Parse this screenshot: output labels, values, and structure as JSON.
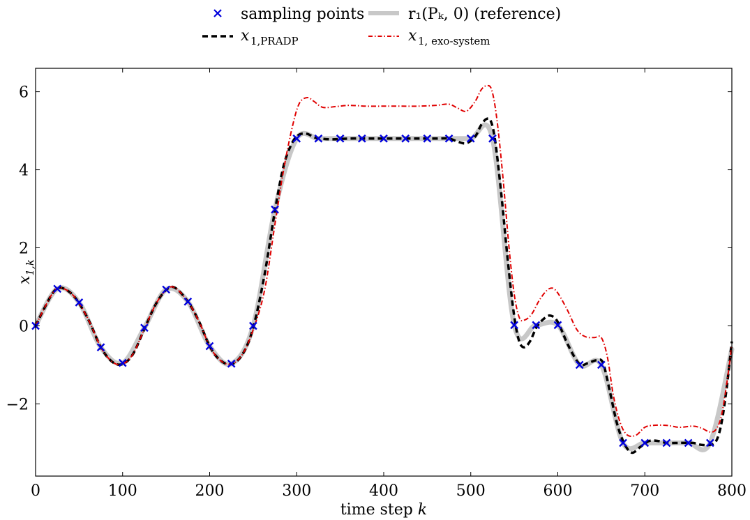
{
  "chart_data": {
    "type": "line",
    "xlabel": "time step k",
    "ylabel": "x1,k",
    "xlim": [
      0,
      800
    ],
    "ylim": [
      -3.85,
      6.6
    ],
    "xticks": [
      0,
      100,
      200,
      300,
      400,
      500,
      600,
      700,
      800
    ],
    "yticks": [
      -2,
      0,
      2,
      4,
      6
    ],
    "xtick_labels": [
      "0",
      "100",
      "200",
      "300",
      "400",
      "500",
      "600",
      "700",
      "800"
    ],
    "ytick_labels": [
      "−2",
      "0",
      "2",
      "4",
      "6"
    ],
    "grid": false,
    "legend_position": "top-center",
    "legend": {
      "sampling": "sampling points",
      "reference": "r₁(Pₖ, 0) (reference)",
      "pradp_main": "x",
      "pradp_sub": "1,PRADP",
      "exo_main": "x",
      "exo_sub": "1, exo-system"
    },
    "series": [
      {
        "name": "r₁(Pₖ, 0) (reference)",
        "style": "solid-thick",
        "color": "#c8c8c8",
        "points": [
          [
            0,
            0
          ],
          [
            25,
            0.95
          ],
          [
            50,
            0.6
          ],
          [
            75,
            -0.55
          ],
          [
            100,
            -0.95
          ],
          [
            125,
            -0.05
          ],
          [
            150,
            0.93
          ],
          [
            175,
            0.62
          ],
          [
            200,
            -0.52
          ],
          [
            225,
            -0.97
          ],
          [
            250,
            0.0
          ],
          [
            275,
            2.98
          ],
          [
            300,
            4.8
          ],
          [
            325,
            4.8
          ],
          [
            350,
            4.8
          ],
          [
            375,
            4.8
          ],
          [
            400,
            4.8
          ],
          [
            425,
            4.8
          ],
          [
            450,
            4.8
          ],
          [
            475,
            4.8
          ],
          [
            500,
            4.8
          ],
          [
            525,
            4.8
          ],
          [
            550,
            0.02
          ],
          [
            575,
            0.02
          ],
          [
            600,
            0.02
          ],
          [
            625,
            -1.0
          ],
          [
            650,
            -1.0
          ],
          [
            675,
            -3.0
          ],
          [
            700,
            -3.0
          ],
          [
            725,
            -3.0
          ],
          [
            750,
            -3.0
          ],
          [
            775,
            -3.0
          ],
          [
            800,
            -0.6
          ]
        ]
      },
      {
        "name": "x1,PRADP",
        "style": "dashed",
        "color": "#000000",
        "points": [
          [
            0,
            0
          ],
          [
            10,
            0.45
          ],
          [
            20,
            0.85
          ],
          [
            28,
            0.98
          ],
          [
            40,
            0.85
          ],
          [
            50,
            0.58
          ],
          [
            62,
            0.1
          ],
          [
            75,
            -0.55
          ],
          [
            88,
            -0.92
          ],
          [
            100,
            -0.98
          ],
          [
            112,
            -0.72
          ],
          [
            125,
            -0.08
          ],
          [
            138,
            0.55
          ],
          [
            150,
            0.92
          ],
          [
            160,
            0.98
          ],
          [
            175,
            0.62
          ],
          [
            188,
            0.1
          ],
          [
            200,
            -0.52
          ],
          [
            212,
            -0.88
          ],
          [
            225,
            -0.98
          ],
          [
            238,
            -0.72
          ],
          [
            250,
            -0.05
          ],
          [
            263,
            1.3
          ],
          [
            275,
            2.95
          ],
          [
            285,
            4.1
          ],
          [
            295,
            4.7
          ],
          [
            303,
            4.9
          ],
          [
            312,
            4.92
          ],
          [
            322,
            4.82
          ],
          [
            340,
            4.78
          ],
          [
            360,
            4.8
          ],
          [
            380,
            4.8
          ],
          [
            400,
            4.8
          ],
          [
            420,
            4.8
          ],
          [
            440,
            4.8
          ],
          [
            460,
            4.8
          ],
          [
            475,
            4.8
          ],
          [
            485,
            4.72
          ],
          [
            495,
            4.68
          ],
          [
            505,
            4.85
          ],
          [
            512,
            5.15
          ],
          [
            518,
            5.3
          ],
          [
            523,
            5.25
          ],
          [
            528,
            4.75
          ],
          [
            535,
            3.4
          ],
          [
            542,
            1.8
          ],
          [
            549,
            0.4
          ],
          [
            555,
            -0.35
          ],
          [
            561,
            -0.55
          ],
          [
            568,
            -0.4
          ],
          [
            576,
            -0.02
          ],
          [
            585,
            0.2
          ],
          [
            592,
            0.26
          ],
          [
            600,
            0.1
          ],
          [
            612,
            -0.5
          ],
          [
            625,
            -0.98
          ],
          [
            635,
            -0.95
          ],
          [
            645,
            -0.88
          ],
          [
            652,
            -0.95
          ],
          [
            660,
            -1.7
          ],
          [
            668,
            -2.5
          ],
          [
            676,
            -3.0
          ],
          [
            685,
            -3.25
          ],
          [
            695,
            -3.1
          ],
          [
            705,
            -2.95
          ],
          [
            715,
            -2.95
          ],
          [
            725,
            -3.0
          ],
          [
            740,
            -3.0
          ],
          [
            755,
            -3.0
          ],
          [
            765,
            -3.05
          ],
          [
            775,
            -3.05
          ],
          [
            782,
            -2.95
          ],
          [
            788,
            -2.5
          ],
          [
            794,
            -1.6
          ],
          [
            800,
            -0.4
          ]
        ]
      },
      {
        "name": "x1, exo-system",
        "style": "dash-dot",
        "color": "#e00000",
        "points": [
          [
            0,
            0
          ],
          [
            10,
            0.45
          ],
          [
            20,
            0.85
          ],
          [
            28,
            0.98
          ],
          [
            40,
            0.85
          ],
          [
            50,
            0.58
          ],
          [
            62,
            0.1
          ],
          [
            75,
            -0.55
          ],
          [
            88,
            -0.92
          ],
          [
            100,
            -0.98
          ],
          [
            112,
            -0.72
          ],
          [
            125,
            -0.08
          ],
          [
            138,
            0.55
          ],
          [
            150,
            0.92
          ],
          [
            160,
            0.98
          ],
          [
            175,
            0.62
          ],
          [
            188,
            0.1
          ],
          [
            200,
            -0.52
          ],
          [
            212,
            -0.88
          ],
          [
            225,
            -0.98
          ],
          [
            238,
            -0.72
          ],
          [
            250,
            -0.1
          ],
          [
            263,
            0.9
          ],
          [
            275,
            2.6
          ],
          [
            285,
            4.0
          ],
          [
            295,
            5.1
          ],
          [
            303,
            5.7
          ],
          [
            312,
            5.85
          ],
          [
            320,
            5.75
          ],
          [
            330,
            5.6
          ],
          [
            345,
            5.62
          ],
          [
            360,
            5.65
          ],
          [
            380,
            5.63
          ],
          [
            400,
            5.63
          ],
          [
            420,
            5.63
          ],
          [
            440,
            5.63
          ],
          [
            460,
            5.65
          ],
          [
            475,
            5.68
          ],
          [
            485,
            5.58
          ],
          [
            495,
            5.5
          ],
          [
            505,
            5.75
          ],
          [
            512,
            6.05
          ],
          [
            518,
            6.15
          ],
          [
            524,
            6.05
          ],
          [
            530,
            5.3
          ],
          [
            537,
            3.8
          ],
          [
            544,
            2.0
          ],
          [
            550,
            0.8
          ],
          [
            556,
            0.2
          ],
          [
            562,
            0.15
          ],
          [
            570,
            0.3
          ],
          [
            580,
            0.7
          ],
          [
            590,
            0.95
          ],
          [
            598,
            0.9
          ],
          [
            610,
            0.45
          ],
          [
            622,
            -0.1
          ],
          [
            632,
            -0.28
          ],
          [
            642,
            -0.3
          ],
          [
            650,
            -0.3
          ],
          [
            657,
            -0.8
          ],
          [
            664,
            -1.8
          ],
          [
            672,
            -2.5
          ],
          [
            680,
            -2.8
          ],
          [
            690,
            -2.8
          ],
          [
            700,
            -2.6
          ],
          [
            710,
            -2.55
          ],
          [
            725,
            -2.55
          ],
          [
            740,
            -2.6
          ],
          [
            755,
            -2.57
          ],
          [
            765,
            -2.62
          ],
          [
            775,
            -2.72
          ],
          [
            782,
            -2.65
          ],
          [
            788,
            -2.3
          ],
          [
            794,
            -1.5
          ],
          [
            800,
            -0.5
          ]
        ]
      },
      {
        "name": "sampling points",
        "style": "markers-x",
        "color": "#0000dd",
        "points": [
          [
            0,
            0
          ],
          [
            25,
            0.95
          ],
          [
            50,
            0.6
          ],
          [
            75,
            -0.55
          ],
          [
            100,
            -0.95
          ],
          [
            125,
            -0.05
          ],
          [
            150,
            0.93
          ],
          [
            175,
            0.62
          ],
          [
            200,
            -0.52
          ],
          [
            225,
            -0.97
          ],
          [
            250,
            0.0
          ],
          [
            275,
            2.98
          ],
          [
            300,
            4.8
          ],
          [
            325,
            4.8
          ],
          [
            350,
            4.8
          ],
          [
            375,
            4.8
          ],
          [
            400,
            4.8
          ],
          [
            425,
            4.8
          ],
          [
            450,
            4.8
          ],
          [
            475,
            4.8
          ],
          [
            500,
            4.8
          ],
          [
            525,
            4.8
          ],
          [
            550,
            0.02
          ],
          [
            575,
            0.02
          ],
          [
            600,
            0.02
          ],
          [
            625,
            -1.0
          ],
          [
            650,
            -1.0
          ],
          [
            675,
            -3.0
          ],
          [
            700,
            -3.0
          ],
          [
            725,
            -3.0
          ],
          [
            750,
            -3.0
          ],
          [
            775,
            -3.0
          ]
        ]
      }
    ]
  }
}
